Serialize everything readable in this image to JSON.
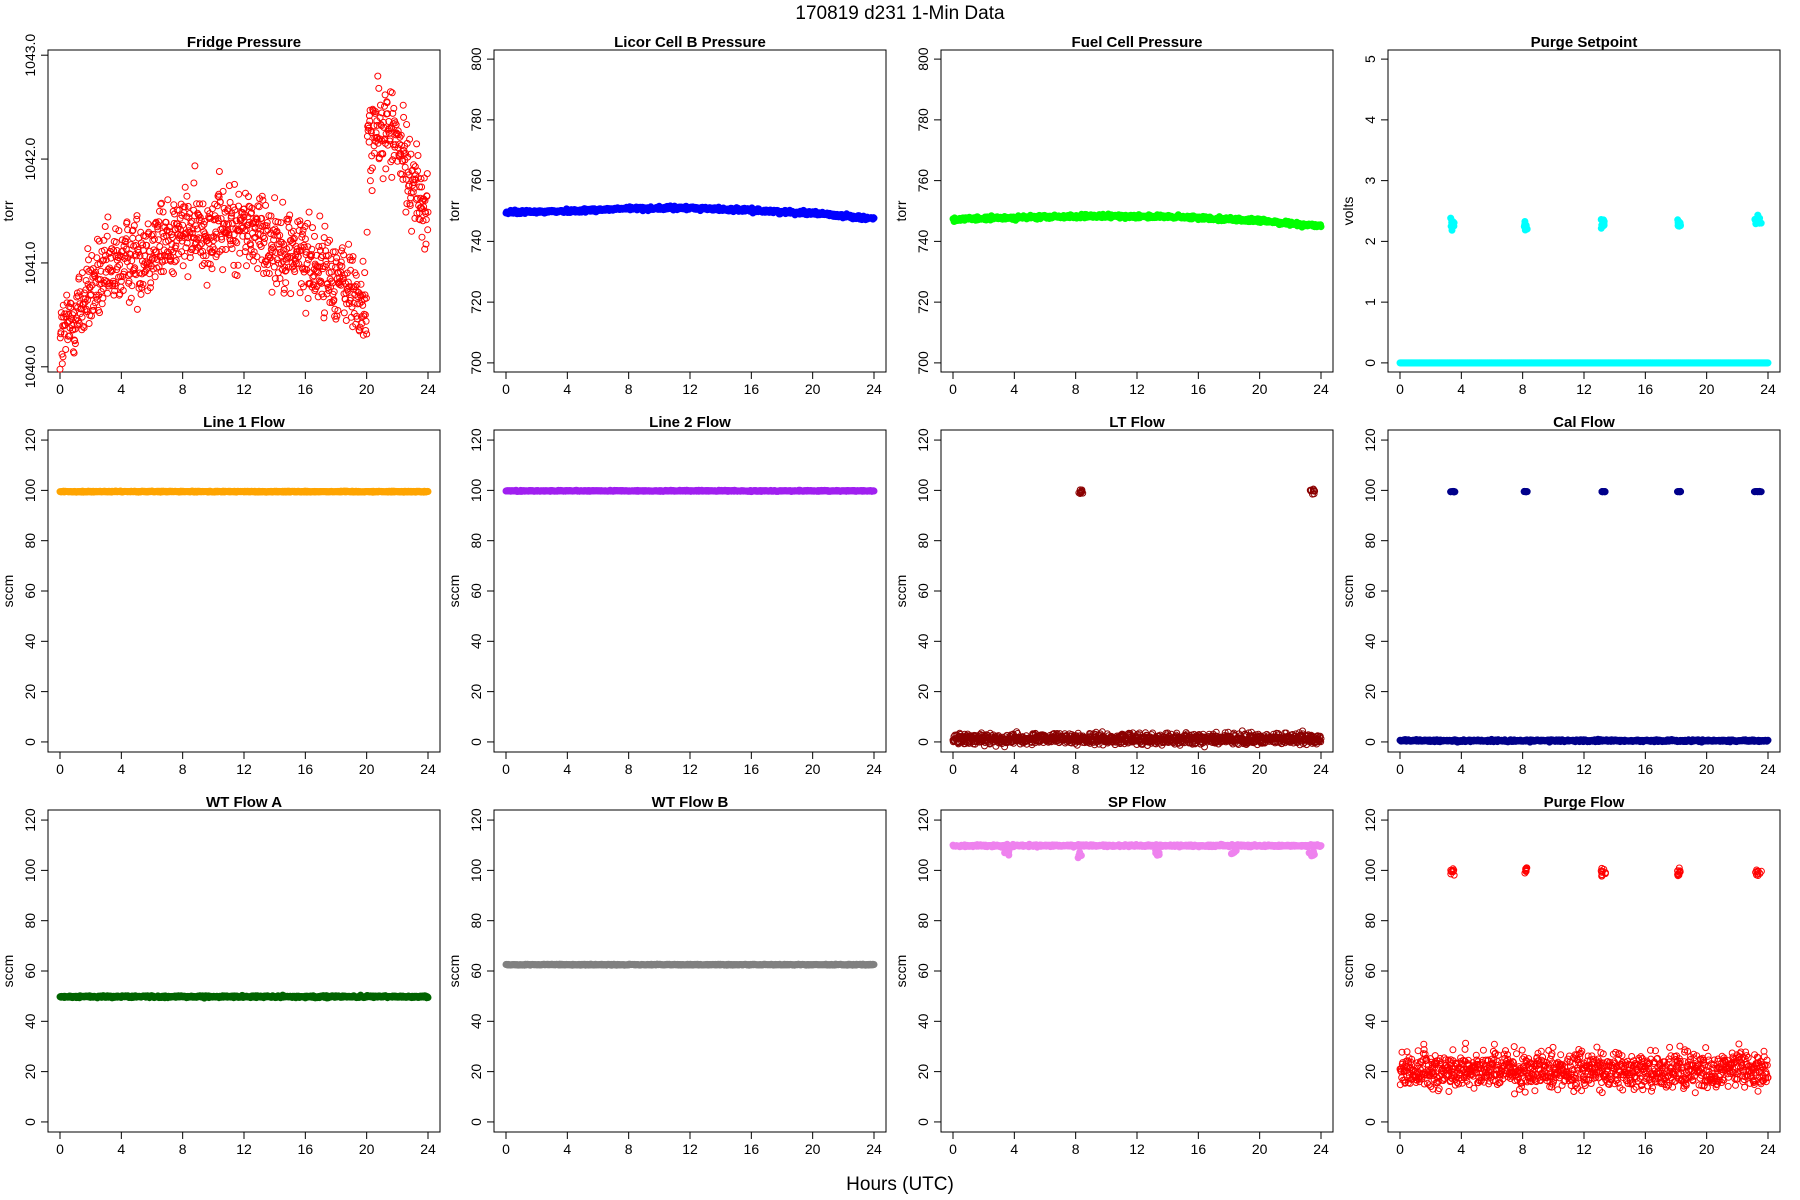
{
  "figure": {
    "title": "170819    d231    1-Min Data",
    "xlabel": "Hours (UTC)"
  },
  "chart_data": [
    {
      "type": "scatter",
      "title": "Fridge Pressure",
      "ylabel": "torr",
      "xlim": [
        0,
        24
      ],
      "ylim": [
        1039.95,
        1043.05
      ],
      "xticks": [
        0,
        4,
        8,
        12,
        16,
        20,
        24
      ],
      "yticks": [
        1040.0,
        1041.0,
        1042.0,
        1043.0
      ],
      "ytick_labels": [
        "1040.0",
        "1041.0",
        "1042.0",
        "1043.0"
      ],
      "color": "#ff0000",
      "filled": false,
      "gen": {
        "mode": "noise",
        "segments": [
          [
            0,
            0.7,
            1040.25
          ],
          [
            2,
            1040.75
          ],
          [
            4,
            1041.0
          ],
          [
            8,
            1041.3
          ],
          [
            12,
            1041.35
          ],
          [
            16,
            1041.05
          ],
          [
            19,
            1040.75
          ],
          [
            20,
            1040.5
          ],
          [
            20.05,
            1042.2
          ],
          [
            21.5,
            1042.3
          ],
          [
            23,
            1041.8
          ],
          [
            24,
            1041.45
          ]
        ],
        "spread": 0.45
      }
    },
    {
      "type": "scatter",
      "title": "Licor Cell B Pressure",
      "ylabel": "torr",
      "xlim": [
        0,
        24
      ],
      "ylim": [
        697,
        803
      ],
      "xticks": [
        0,
        4,
        8,
        12,
        16,
        20,
        24
      ],
      "yticks": [
        700,
        720,
        740,
        760,
        780,
        800
      ],
      "color": "#0000ff",
      "filled": true,
      "gen": {
        "mode": "line",
        "segments": [
          [
            0,
            749.5
          ],
          [
            4,
            750
          ],
          [
            8,
            750.8
          ],
          [
            12,
            751
          ],
          [
            16,
            750.2
          ],
          [
            20,
            749.3
          ],
          [
            24,
            747.5
          ]
        ],
        "spread": 0.3
      }
    },
    {
      "type": "scatter",
      "title": "Fuel Cell Pressure",
      "ylabel": "torr",
      "xlim": [
        0,
        24
      ],
      "ylim": [
        697,
        803
      ],
      "xticks": [
        0,
        4,
        8,
        12,
        16,
        20,
        24
      ],
      "yticks": [
        700,
        720,
        740,
        760,
        780,
        800
      ],
      "color": "#00ff00",
      "filled": true,
      "gen": {
        "mode": "line",
        "segments": [
          [
            0,
            747.2
          ],
          [
            4,
            747.8
          ],
          [
            8,
            748.2
          ],
          [
            12,
            748.3
          ],
          [
            16,
            747.8
          ],
          [
            20,
            746.8
          ],
          [
            24,
            745
          ]
        ],
        "spread": 0.3
      }
    },
    {
      "type": "scatter",
      "title": "Purge Setpoint",
      "ylabel": "volts",
      "xlim": [
        0,
        24
      ],
      "ylim": [
        -0.15,
        5.15
      ],
      "xticks": [
        0,
        4,
        8,
        12,
        16,
        20,
        24
      ],
      "yticks": [
        0,
        1,
        2,
        3,
        4,
        5
      ],
      "color": "#00ffff",
      "filled": true,
      "gen": {
        "mode": "line",
        "segments": [
          [
            0,
            0
          ],
          [
            24,
            0
          ]
        ],
        "spread": 0.0,
        "bursts": [
          [
            3.3,
            3.6,
            2.3
          ],
          [
            8.1,
            8.3,
            2.3
          ],
          [
            13.1,
            13.4,
            2.3
          ],
          [
            18.1,
            18.3,
            2.3
          ],
          [
            23.1,
            23.6,
            2.32
          ]
        ]
      }
    },
    {
      "type": "scatter",
      "title": "Line 1 Flow",
      "ylabel": "sccm",
      "xlim": [
        0,
        24
      ],
      "ylim": [
        -4,
        124
      ],
      "xticks": [
        0,
        4,
        8,
        12,
        16,
        20,
        24
      ],
      "yticks": [
        0,
        20,
        40,
        60,
        80,
        100,
        120
      ],
      "color": "#ffa500",
      "filled": true,
      "gen": {
        "mode": "line",
        "segments": [
          [
            0,
            99.5
          ],
          [
            24,
            99.5
          ]
        ],
        "spread": 0.1
      }
    },
    {
      "type": "scatter",
      "title": "Line 2 Flow",
      "ylabel": "sccm",
      "xlim": [
        0,
        24
      ],
      "ylim": [
        -4,
        124
      ],
      "xticks": [
        0,
        4,
        8,
        12,
        16,
        20,
        24
      ],
      "yticks": [
        0,
        20,
        40,
        60,
        80,
        100,
        120
      ],
      "color": "#a020f0",
      "filled": true,
      "gen": {
        "mode": "line",
        "segments": [
          [
            0,
            99.8
          ],
          [
            24,
            99.8
          ]
        ],
        "spread": 0.1
      }
    },
    {
      "type": "scatter",
      "title": "LT Flow",
      "ylabel": "sccm",
      "xlim": [
        0,
        24
      ],
      "ylim": [
        -4,
        124
      ],
      "xticks": [
        0,
        4,
        8,
        12,
        16,
        20,
        24
      ],
      "yticks": [
        0,
        20,
        40,
        60,
        80,
        100,
        120
      ],
      "color": "#8b0000",
      "filled": false,
      "gen": {
        "mode": "noise",
        "segments": [
          [
            0,
            1.2
          ],
          [
            24,
            1.2
          ]
        ],
        "spread": 2.4,
        "bursts": [
          [
            8.2,
            8.5,
            99.5
          ],
          [
            23.3,
            23.6,
            99.5
          ]
        ]
      }
    },
    {
      "type": "scatter",
      "title": "Cal Flow",
      "ylabel": "sccm",
      "xlim": [
        0,
        24
      ],
      "ylim": [
        -4,
        124
      ],
      "xticks": [
        0,
        4,
        8,
        12,
        16,
        20,
        24
      ],
      "yticks": [
        0,
        20,
        40,
        60,
        80,
        100,
        120
      ],
      "color": "#00008b",
      "filled": true,
      "gen": {
        "mode": "line",
        "segments": [
          [
            0,
            0.5
          ],
          [
            24,
            0.5
          ]
        ],
        "spread": 0.2,
        "bursts": [
          [
            3.3,
            3.6,
            99.5
          ],
          [
            8.1,
            8.3,
            99.5
          ],
          [
            13.1,
            13.4,
            99.5
          ],
          [
            18.1,
            18.3,
            99.5
          ],
          [
            23.1,
            23.6,
            99.5
          ]
        ]
      }
    },
    {
      "type": "scatter",
      "title": "WT Flow A",
      "ylabel": "sccm",
      "xlim": [
        0,
        24
      ],
      "ylim": [
        -4,
        124
      ],
      "xticks": [
        0,
        4,
        8,
        12,
        16,
        20,
        24
      ],
      "yticks": [
        0,
        20,
        40,
        60,
        80,
        100,
        120
      ],
      "color": "#006400",
      "filled": true,
      "gen": {
        "mode": "line",
        "segments": [
          [
            0,
            49.8
          ],
          [
            24,
            49.8
          ]
        ],
        "spread": 0.2
      }
    },
    {
      "type": "scatter",
      "title": "WT Flow B",
      "ylabel": "sccm",
      "xlim": [
        0,
        24
      ],
      "ylim": [
        -4,
        124
      ],
      "xticks": [
        0,
        4,
        8,
        12,
        16,
        20,
        24
      ],
      "yticks": [
        0,
        20,
        40,
        60,
        80,
        100,
        120
      ],
      "color": "#808080",
      "filled": true,
      "gen": {
        "mode": "line",
        "segments": [
          [
            0,
            62.5
          ],
          [
            24,
            62.5
          ]
        ],
        "spread": 0.1
      }
    },
    {
      "type": "scatter",
      "title": "SP Flow",
      "ylabel": "sccm",
      "xlim": [
        0,
        24
      ],
      "ylim": [
        -4,
        124
      ],
      "xticks": [
        0,
        4,
        8,
        12,
        16,
        20,
        24
      ],
      "yticks": [
        0,
        20,
        40,
        60,
        80,
        100,
        120
      ],
      "color": "#ee82ee",
      "filled": true,
      "gen": {
        "mode": "line",
        "segments": [
          [
            0,
            109.8
          ],
          [
            24,
            109.8
          ]
        ],
        "spread": 0.2,
        "dips": [
          [
            3.3,
            3.7,
            107
          ],
          [
            8.1,
            8.6,
            106
          ],
          [
            13.1,
            13.5,
            107
          ],
          [
            18.1,
            18.5,
            107
          ],
          [
            23.2,
            23.6,
            106
          ]
        ]
      }
    },
    {
      "type": "scatter",
      "title": "Purge Flow",
      "ylabel": "sccm",
      "xlim": [
        0,
        24
      ],
      "ylim": [
        -4,
        124
      ],
      "xticks": [
        0,
        4,
        8,
        12,
        16,
        20,
        24
      ],
      "yticks": [
        0,
        20,
        40,
        60,
        80,
        100,
        120
      ],
      "color": "#ff0000",
      "filled": false,
      "gen": {
        "mode": "noise",
        "segments": [
          [
            0,
            20.5
          ],
          [
            24,
            20.5
          ]
        ],
        "spread": 8,
        "bursts": [
          [
            3.3,
            3.6,
            99.5
          ],
          [
            8.1,
            8.3,
            99.5
          ],
          [
            13.1,
            13.4,
            99.5
          ],
          [
            18.1,
            18.3,
            99.5
          ],
          [
            23.1,
            23.6,
            99.5
          ]
        ]
      }
    }
  ]
}
